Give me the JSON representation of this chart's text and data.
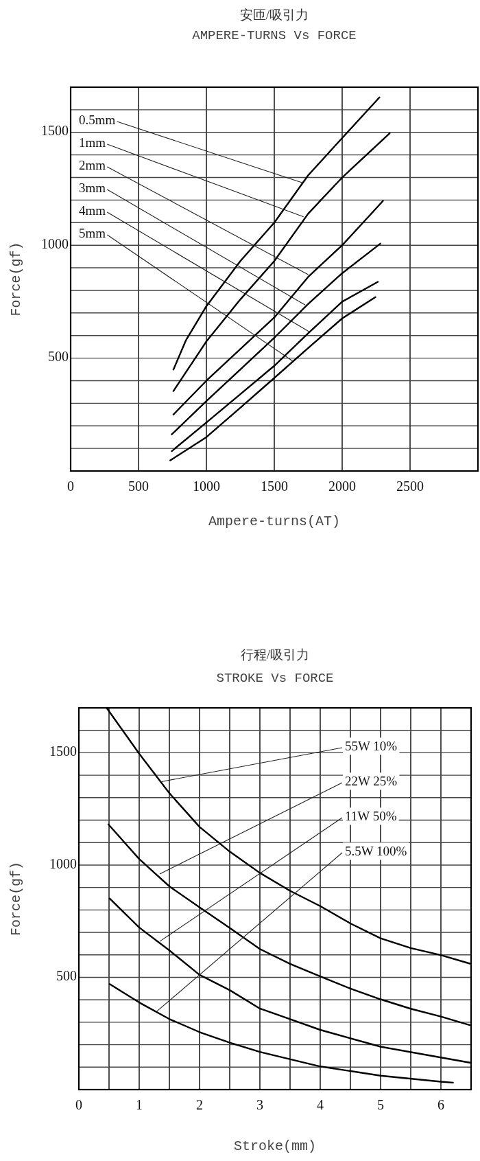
{
  "chart_data": [
    {
      "type": "line",
      "title": "安匝/吸引力",
      "subtitle": "AMPERE-TURNS Vs FORCE",
      "xlabel": "Ampere-turns(AT)",
      "ylabel": "Force(gf)",
      "xlim": [
        0,
        3000
      ],
      "ylim": [
        0,
        1700
      ],
      "xticks": [
        0,
        500,
        1000,
        1500,
        2000,
        2500
      ],
      "yticks": [
        {
          "value": 100,
          "label": null
        },
        {
          "value": 200,
          "label": null
        },
        {
          "value": 300,
          "label": null
        },
        {
          "value": 400,
          "label": null
        },
        500,
        {
          "value": 600,
          "label": null
        },
        {
          "value": 700,
          "label": null
        },
        {
          "value": 800,
          "label": null
        },
        {
          "value": 900,
          "label": null
        },
        1000,
        {
          "value": 1100,
          "label": null
        },
        {
          "value": 1200,
          "label": null
        },
        {
          "value": 1300,
          "label": null
        },
        {
          "value": 1400,
          "label": null
        },
        1500,
        {
          "value": 1600,
          "label": null
        }
      ],
      "grid": true,
      "series": [
        {
          "color": "#000000",
          "x": [
            757,
            850,
            1000,
            1250,
            1500,
            1750,
            2000,
            2275
          ],
          "values": [
            449,
            580,
            730,
            930,
            1100,
            1310,
            1475,
            1655
          ]
        },
        {
          "color": "#000000",
          "x": [
            757,
            1000,
            1250,
            1500,
            1750,
            2000,
            2350
          ],
          "values": [
            354,
            574,
            760,
            930,
            1140,
            1300,
            1496
          ]
        },
        {
          "color": "#000000",
          "x": [
            757,
            1000,
            1250,
            1500,
            1750,
            2000,
            2300
          ],
          "values": [
            250,
            400,
            540,
            680,
            860,
            1000,
            1196
          ]
        },
        {
          "color": "#000000",
          "x": [
            745,
            1000,
            1250,
            1500,
            1750,
            2000,
            2281
          ],
          "values": [
            162,
            310,
            450,
            590,
            740,
            876,
            1007
          ]
        },
        {
          "color": "#000000",
          "x": [
            745,
            1000,
            1250,
            1500,
            1750,
            2000,
            2263
          ],
          "values": [
            88,
            215,
            340,
            466,
            610,
            750,
            838
          ]
        },
        {
          "color": "#000000",
          "x": [
            734,
            1000,
            1250,
            1500,
            1750,
            2000,
            2245
          ],
          "values": [
            47,
            150,
            280,
            412,
            545,
            676,
            770
          ]
        }
      ],
      "annotations": [
        {
          "text": "0.5mm",
          "x": 1705,
          "y": 1277
        },
        {
          "text": "1mm",
          "x": 1716,
          "y": 1126
        },
        {
          "text": "2mm",
          "x": 1750,
          "y": 870
        },
        {
          "text": "3mm",
          "x": 1728,
          "y": 735
        },
        {
          "text": "4mm",
          "x": 1760,
          "y": 616
        },
        {
          "text": "5mm",
          "x": 1638,
          "y": 486
        }
      ]
    },
    {
      "type": "line",
      "title": "行程/吸引力",
      "subtitle": "STROKE Vs FORCE",
      "xlabel": "Stroke(mm)",
      "ylabel": "Force(gf)",
      "xlim": [
        0,
        6.5
      ],
      "ylim": [
        0,
        1700
      ],
      "xticks": [
        0,
        {
          "value": 0.5,
          "label": null
        },
        1,
        {
          "value": 1.5,
          "label": null
        },
        2,
        {
          "value": 2.5,
          "label": null
        },
        3,
        {
          "value": 3.5,
          "label": null
        },
        4,
        {
          "value": 4.5,
          "label": null
        },
        5,
        {
          "value": 5.5,
          "label": null
        },
        6
      ],
      "yticks": [
        {
          "value": 100,
          "label": null
        },
        {
          "value": 200,
          "label": null
        },
        {
          "value": 300,
          "label": null
        },
        {
          "value": 400,
          "label": null
        },
        500,
        {
          "value": 600,
          "label": null
        },
        {
          "value": 700,
          "label": null
        },
        {
          "value": 800,
          "label": null
        },
        {
          "value": 900,
          "label": null
        },
        1000,
        {
          "value": 1100,
          "label": null
        },
        {
          "value": 1200,
          "label": null
        },
        {
          "value": 1300,
          "label": null
        },
        {
          "value": 1400,
          "label": null
        },
        1500,
        {
          "value": 1600,
          "label": null
        }
      ],
      "grid": true,
      "series": [
        {
          "color": "#000000",
          "x": [
            0.46,
            1,
            1.5,
            2,
            2.5,
            3,
            3.5,
            4,
            4.5,
            5,
            5.5,
            6,
            6.48
          ],
          "values": [
            1700,
            1496,
            1320,
            1170,
            1060,
            965,
            885,
            817,
            740,
            674,
            630,
            599,
            561
          ]
        },
        {
          "color": "#000000",
          "x": [
            0.49,
            1,
            1.5,
            2,
            2.5,
            3,
            3.5,
            4,
            4.5,
            5,
            5.5,
            6,
            6.48
          ],
          "values": [
            1181,
            1027,
            905,
            812,
            720,
            626,
            560,
            504,
            450,
            402,
            360,
            325,
            287
          ]
        },
        {
          "color": "#000000",
          "x": [
            0.51,
            1,
            1.5,
            2,
            2.5,
            3,
            3.5,
            4,
            5,
            6,
            6.48
          ],
          "values": [
            851,
            722,
            620,
            511,
            443,
            361,
            314,
            266,
            191,
            143,
            120
          ]
        },
        {
          "color": "#000000",
          "x": [
            0.51,
            1,
            1.5,
            2,
            2.5,
            3,
            4,
            5,
            6,
            6.2
          ],
          "values": [
            470,
            388,
            314,
            256,
            209,
            168,
            103,
            62,
            35,
            31
          ]
        }
      ],
      "annotations": [
        {
          "text": "55W 10%",
          "x": 1.34,
          "y": 1370
        },
        {
          "text": "22W 25%",
          "x": 1.34,
          "y": 960
        },
        {
          "text": "11W 50%",
          "x": 1.34,
          "y": 660
        },
        {
          "text": "5.5W 100%",
          "x": 1.29,
          "y": 348
        }
      ]
    }
  ]
}
